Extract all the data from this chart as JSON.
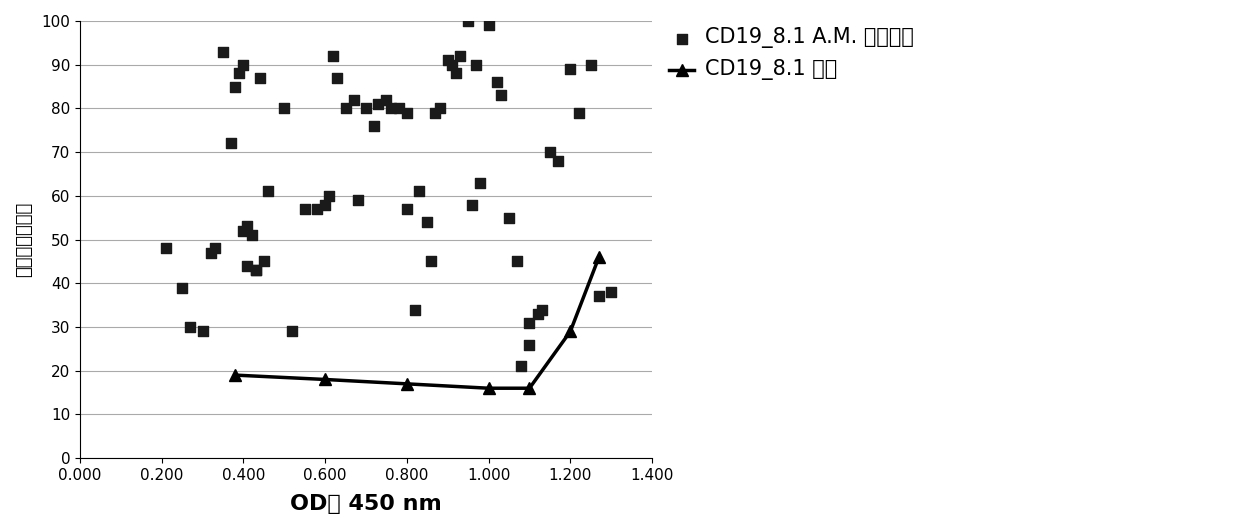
{
  "scatter_x": [
    0.21,
    0.25,
    0.27,
    0.3,
    0.32,
    0.33,
    0.35,
    0.37,
    0.38,
    0.39,
    0.4,
    0.4,
    0.41,
    0.41,
    0.42,
    0.43,
    0.43,
    0.44,
    0.45,
    0.46,
    0.5,
    0.52,
    0.55,
    0.58,
    0.6,
    0.61,
    0.62,
    0.63,
    0.65,
    0.67,
    0.68,
    0.7,
    0.72,
    0.73,
    0.75,
    0.76,
    0.78,
    0.8,
    0.8,
    0.82,
    0.83,
    0.85,
    0.86,
    0.87,
    0.88,
    0.9,
    0.91,
    0.92,
    0.93,
    0.95,
    0.96,
    0.97,
    0.98,
    1.0,
    1.02,
    1.03,
    1.05,
    1.07,
    1.08,
    1.1,
    1.1,
    1.12,
    1.13,
    1.15,
    1.17,
    1.2,
    1.22,
    1.25,
    1.27,
    1.3
  ],
  "scatter_y": [
    48,
    39,
    30,
    29,
    47,
    48,
    93,
    72,
    85,
    88,
    90,
    52,
    53,
    44,
    51,
    43,
    43,
    87,
    45,
    61,
    80,
    29,
    57,
    57,
    58,
    60,
    92,
    87,
    80,
    82,
    59,
    80,
    76,
    81,
    82,
    80,
    80,
    79,
    57,
    34,
    61,
    54,
    45,
    79,
    80,
    91,
    90,
    88,
    92,
    100,
    58,
    90,
    63,
    99,
    86,
    83,
    55,
    45,
    21,
    31,
    26,
    33,
    34,
    70,
    68,
    89,
    79,
    90,
    37,
    38
  ],
  "line_x": [
    0.38,
    0.6,
    0.8,
    1.0,
    1.1,
    1.2,
    1.27
  ],
  "line_y": [
    19,
    18,
    17,
    16,
    16,
    29,
    46
  ],
  "scatter_color": "#1a1a1a",
  "line_color": "#000000",
  "xlabel": "OD値 450 nm",
  "ylabel": "剩余比率（％）",
  "legend1": "CD19_8.1 A.M. 阳性克隆",
  "legend2": "CD19_8.1 亲本",
  "xlim": [
    0.0,
    1.4
  ],
  "ylim": [
    0,
    100
  ],
  "xticks": [
    0.0,
    0.2,
    0.4,
    0.6,
    0.8,
    1.0,
    1.2,
    1.4
  ],
  "yticks": [
    0,
    10,
    20,
    30,
    40,
    50,
    60,
    70,
    80,
    90,
    100
  ],
  "background_color": "#ffffff"
}
